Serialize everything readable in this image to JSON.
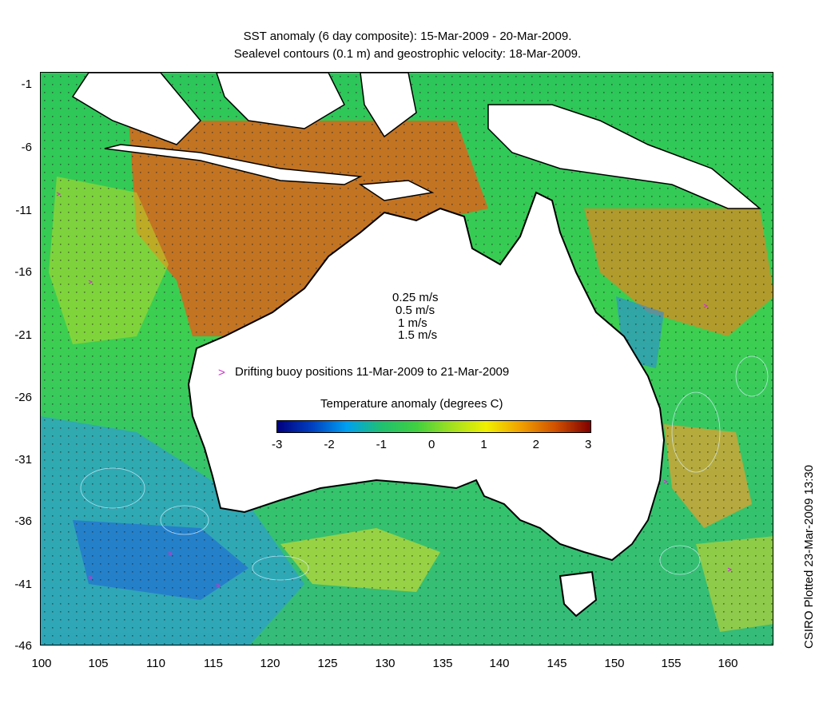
{
  "title": {
    "line1": "SST anomaly (6 day composite): 15-Mar-2009 - 20-Mar-2009.",
    "line2": "Sealevel contours (0.1 m) and geostrophic velocity: 18-Mar-2009."
  },
  "axes": {
    "x_ticks": [
      "100",
      "105",
      "110",
      "115",
      "120",
      "125",
      "130",
      "135",
      "140",
      "145",
      "150",
      "155",
      "160"
    ],
    "y_ticks": [
      "-1",
      "-6",
      "-11",
      "-16",
      "-21",
      "-26",
      "-31",
      "-36",
      "-41",
      "-46"
    ]
  },
  "velocity_legend": [
    "0.25 m/s",
    "0.5 m/s",
    "1 m/s",
    "1.5 m/s"
  ],
  "buoy_legend": "Drifting buoy positions 11-Mar-2009 to 21-Mar-2009",
  "colorbar": {
    "title": "Temperature anomaly (degrees C)",
    "ticks": [
      "-3",
      "-2",
      "-1",
      "0",
      "1",
      "2",
      "3"
    ],
    "range": [
      -3,
      3
    ],
    "colors": [
      "#00007f",
      "#0050d0",
      "#00b0f0",
      "#20c060",
      "#60d020",
      "#f0f000",
      "#f0a000",
      "#d05000",
      "#800000"
    ]
  },
  "side_label": "CSIRO Plotted 23-Mar-2009 13:30",
  "colors": {
    "ocean_cool": "#1fc65a",
    "ocean_cold": "#2f7fe0",
    "ocean_warm": "#d8661a",
    "land": "#ffffff",
    "coast": "#000000",
    "buoy": "#cc33cc"
  }
}
